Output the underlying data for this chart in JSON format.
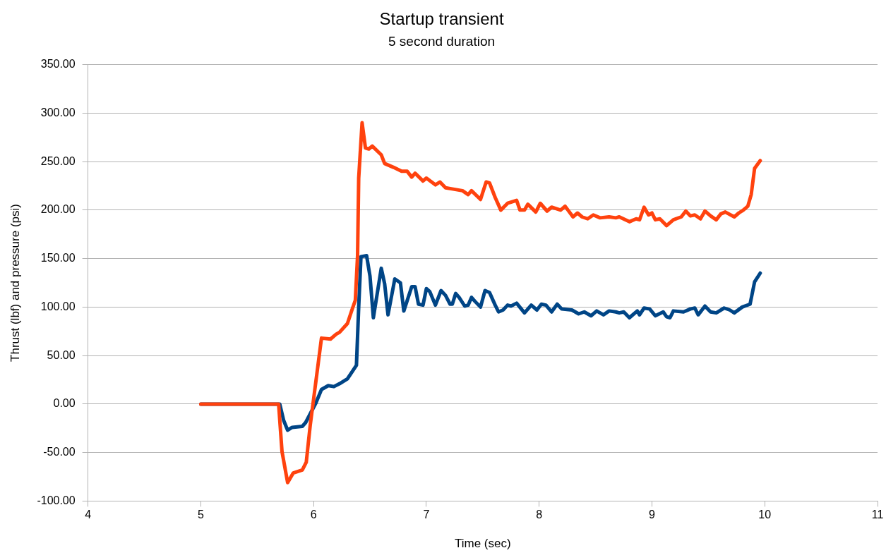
{
  "chart_data": {
    "type": "line",
    "title": "Startup transient",
    "subtitle": "5 second duration",
    "xlabel": "Time (sec)",
    "ylabel": "Thrust (lbf) and pressure (psi)",
    "xlim": [
      4,
      11
    ],
    "xticks": [
      4,
      5,
      6,
      7,
      8,
      9,
      10,
      11
    ],
    "ylim": [
      -100,
      350
    ],
    "yticks": [
      {
        "value": -100,
        "label": "-100.00"
      },
      {
        "value": -50,
        "label": "-50.00"
      },
      {
        "value": 0,
        "label": "0.00"
      },
      {
        "value": 50,
        "label": "50.00"
      },
      {
        "value": 100,
        "label": "100.00"
      },
      {
        "value": 150,
        "label": "150.00"
      },
      {
        "value": 200,
        "label": "200.00"
      },
      {
        "value": 250,
        "label": "250.00"
      },
      {
        "value": 300,
        "label": "300.00"
      },
      {
        "value": 350,
        "label": "350.00"
      }
    ],
    "grid": "y",
    "legend": false,
    "marker": "none",
    "line_style": "solid",
    "series": [
      {
        "color": "#ff420e",
        "x": [
          5,
          5.69,
          5.72,
          5.77,
          5.82,
          5.9,
          5.935,
          5.97,
          6,
          6.07,
          6.15,
          6.2,
          6.23,
          6.3,
          6.34,
          6.37,
          6.39,
          6.4,
          6.43,
          6.46,
          6.49,
          6.52,
          6.6,
          6.63,
          6.71,
          6.78,
          6.83,
          6.87,
          6.9,
          6.97,
          7,
          7.08,
          7.12,
          7.17,
          7.22,
          7.32,
          7.37,
          7.4,
          7.48,
          7.53,
          7.56,
          7.61,
          7.66,
          7.72,
          7.8,
          7.83,
          7.87,
          7.9,
          7.97,
          8.01,
          8.07,
          8.11,
          8.19,
          8.23,
          8.3,
          8.34,
          8.38,
          8.43,
          8.48,
          8.54,
          8.62,
          8.68,
          8.71,
          8.8,
          8.86,
          8.89,
          8.93,
          8.97,
          9,
          9.03,
          9.07,
          9.13,
          9.19,
          9.26,
          9.3,
          9.34,
          9.38,
          9.43,
          9.47,
          9.52,
          9.57,
          9.61,
          9.65,
          9.73,
          9.77,
          9.81,
          9.85,
          9.88,
          9.91,
          9.96
        ],
        "values": [
          0,
          0,
          -49,
          -81,
          -71,
          -68,
          -60,
          -22,
          5,
          68,
          67,
          72,
          74,
          83,
          97,
          107,
          153,
          233,
          290,
          264,
          263,
          266,
          257,
          248,
          244,
          240,
          240,
          234,
          238,
          230,
          233,
          226,
          229,
          223,
          222,
          220,
          216,
          220,
          211,
          229,
          228,
          213,
          200,
          207,
          210,
          200,
          200,
          206,
          198,
          207,
          199,
          203,
          200,
          204,
          193,
          197,
          193,
          191,
          195,
          192,
          193,
          192,
          193,
          188,
          191,
          190,
          203,
          195,
          197,
          190,
          191,
          184,
          190,
          193,
          199,
          194,
          195,
          191,
          199,
          194,
          190,
          196,
          198,
          193,
          197,
          200,
          204,
          216,
          243,
          251
        ]
      },
      {
        "color": "#004586",
        "x": [
          5,
          5.7,
          5.735,
          5.77,
          5.81,
          5.9,
          5.93,
          6.02,
          6.07,
          6.13,
          6.18,
          6.23,
          6.3,
          6.38,
          6.4,
          6.42,
          6.47,
          6.5,
          6.53,
          6.6,
          6.63,
          6.66,
          6.72,
          6.77,
          6.8,
          6.87,
          6.9,
          6.93,
          6.97,
          7,
          7.03,
          7.08,
          7.13,
          7.17,
          7.21,
          7.23,
          7.26,
          7.29,
          7.34,
          7.37,
          7.4,
          7.43,
          7.48,
          7.52,
          7.56,
          7.61,
          7.64,
          7.68,
          7.72,
          7.75,
          7.8,
          7.87,
          7.93,
          7.98,
          8.02,
          8.06,
          8.11,
          8.16,
          8.2,
          8.29,
          8.35,
          8.4,
          8.46,
          8.51,
          8.57,
          8.62,
          8.68,
          8.71,
          8.75,
          8.8,
          8.87,
          8.89,
          8.93,
          8.98,
          9.03,
          9.1,
          9.13,
          9.16,
          9.19,
          9.28,
          9.34,
          9.38,
          9.41,
          9.47,
          9.52,
          9.57,
          9.64,
          9.69,
          9.73,
          9.8,
          9.87,
          9.91,
          9.96
        ],
        "values": [
          0,
          0,
          -17,
          -27,
          -24,
          -23,
          -19,
          1,
          15,
          19,
          18,
          21,
          26,
          40,
          100,
          152,
          153,
          132,
          89,
          140,
          124,
          92,
          129,
          125,
          96,
          121,
          121,
          103,
          102,
          119,
          116,
          102,
          117,
          112,
          103,
          103,
          114,
          110,
          101,
          102,
          110,
          106,
          100,
          117,
          115,
          102,
          95,
          97,
          102,
          101,
          104,
          94,
          102,
          97,
          103,
          102,
          95,
          103,
          98,
          97,
          93,
          95,
          91,
          96,
          92,
          96,
          95,
          94,
          95,
          89,
          96,
          92,
          99,
          98,
          91,
          95,
          90,
          89,
          96,
          95,
          98,
          99,
          92,
          101,
          95,
          94,
          99,
          97,
          94,
          100,
          103,
          126,
          135
        ]
      }
    ]
  }
}
